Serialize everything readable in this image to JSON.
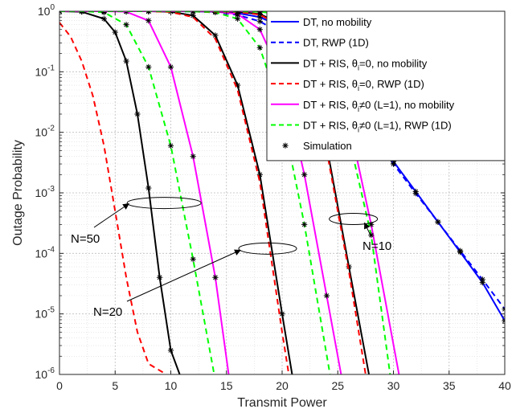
{
  "chart_data": {
    "type": "line",
    "title": "",
    "xlabel": "Transmit Power",
    "ylabel": "Outage Probability",
    "xlim": [
      0,
      40
    ],
    "ylim": [
      1e-06,
      1
    ],
    "yscale": "log",
    "grid": true,
    "minor_grid": true,
    "legend_position": "top-right",
    "x_ticks": [
      "0",
      "5",
      "10",
      "15",
      "20",
      "25",
      "30",
      "35",
      "40"
    ],
    "y_ticks": [
      {
        "base": "10",
        "exp": "0",
        "value": 1
      },
      {
        "base": "10",
        "exp": "-1",
        "value": 0.1
      },
      {
        "base": "10",
        "exp": "-2",
        "value": 0.01
      },
      {
        "base": "10",
        "exp": "-3",
        "value": 0.001
      },
      {
        "base": "10",
        "exp": "-4",
        "value": 0.0001
      },
      {
        "base": "10",
        "exp": "-5",
        "value": 1e-05
      },
      {
        "base": "10",
        "exp": "-6",
        "value": 1e-06
      }
    ],
    "legend": [
      {
        "pre": "DT, no mobility",
        "sub": "",
        "post": "",
        "color": "#0000ff",
        "dash": "solid",
        "marker": false
      },
      {
        "pre": "DT, RWP (1D)",
        "sub": "",
        "post": "",
        "color": "#0000ff",
        "dash": "dashed",
        "marker": false
      },
      {
        "pre": "DT + RIS, θ",
        "sub": "i",
        "post": "=0, no mobility",
        "color": "#000000",
        "dash": "solid",
        "marker": false
      },
      {
        "pre": "DT + RIS, θ",
        "sub": "i",
        "post": "=0, RWP (1D)",
        "color": "#ff0000",
        "dash": "dashed",
        "marker": false
      },
      {
        "pre": "DT + RIS, θ",
        "sub": "i",
        "post": "≠0 (L=1), no mobility",
        "color": "#ff00ff",
        "dash": "solid",
        "marker": false
      },
      {
        "pre": "DT + RIS, θ",
        "sub": "i",
        "post": "≠0 (L=1), RWP (1D)",
        "color": "#00ff00",
        "dash": "dashed",
        "marker": false
      },
      {
        "pre": "Simulation",
        "sub": "",
        "post": "",
        "color": "#000000",
        "dash": "none",
        "marker": true
      }
    ],
    "annotations": [
      {
        "label": "N=50",
        "ellipse_center": [
          9.4,
          0.00068
        ]
      },
      {
        "label": "N=20",
        "ellipse_center": [
          18.7,
          0.00012
        ]
      },
      {
        "label": "N=10",
        "ellipse_center": [
          26.4,
          0.00037
        ]
      }
    ],
    "series": [
      {
        "style_ref": 0,
        "color": "#0000ff",
        "dash": "solid",
        "sim": true,
        "x": [
          0,
          2,
          4,
          6,
          8,
          10,
          12,
          14,
          16,
          18,
          20,
          22,
          24,
          26,
          28,
          30,
          32,
          34,
          36,
          38,
          40
        ],
        "y": [
          1,
          1,
          1,
          1,
          1,
          0.999,
          0.995,
          0.98,
          0.93,
          0.8,
          0.55,
          0.28,
          0.1,
          0.033,
          0.0105,
          0.0033,
          0.00105,
          0.00033,
          0.000105,
          3.3e-05,
          7.7e-06
        ]
      },
      {
        "style_ref": 1,
        "color": "#0000ff",
        "dash": "dashed",
        "sim": true,
        "x": [
          0,
          2,
          4,
          6,
          8,
          10,
          12,
          14,
          16,
          18,
          20,
          22,
          24,
          26,
          28,
          30,
          32,
          34,
          36,
          38,
          40
        ],
        "y": [
          1,
          1,
          1,
          1,
          1,
          0.998,
          0.99,
          0.96,
          0.87,
          0.68,
          0.42,
          0.2,
          0.075,
          0.027,
          0.009,
          0.003,
          0.00098,
          0.00033,
          0.00011,
          3.7e-05,
          1.2e-05
        ]
      },
      {
        "style_ref": 2,
        "color": "#000000",
        "dash": "solid",
        "sim": true,
        "group": "N=50",
        "x": [
          0,
          2,
          4,
          5,
          6,
          7,
          8,
          9,
          10,
          10.8
        ],
        "y": [
          1,
          0.98,
          0.75,
          0.45,
          0.15,
          0.02,
          0.0012,
          4e-05,
          2.5e-06,
          1e-06
        ]
      },
      {
        "style_ref": 3,
        "color": "#ff0000",
        "dash": "dashed",
        "sim": false,
        "group": "N=50",
        "x": [
          0,
          1,
          2,
          3,
          4,
          5,
          6,
          7,
          8,
          9.6
        ],
        "y": [
          0.65,
          0.38,
          0.15,
          0.04,
          0.006,
          0.0005,
          4e-05,
          5e-06,
          1.5e-06,
          1e-06
        ]
      },
      {
        "style_ref": 4,
        "color": "#ff00ff",
        "dash": "solid",
        "sim": true,
        "group": "N=50",
        "x": [
          0,
          2,
          4,
          6,
          8,
          10,
          12,
          14,
          15.2
        ],
        "y": [
          1,
          1,
          1,
          0.98,
          0.7,
          0.12,
          0.004,
          4e-05,
          1e-06
        ]
      },
      {
        "style_ref": 5,
        "color": "#00ff00",
        "dash": "dashed",
        "sim": true,
        "group": "N=50",
        "x": [
          0,
          2,
          4,
          6,
          8,
          10,
          12,
          13.9
        ],
        "y": [
          1,
          1,
          0.96,
          0.6,
          0.12,
          0.006,
          8e-05,
          1e-06
        ]
      },
      {
        "style_ref": 2,
        "color": "#000000",
        "dash": "solid",
        "sim": true,
        "group": "N=20",
        "x": [
          0,
          4,
          8,
          10,
          12,
          14,
          16,
          18,
          20,
          20.9
        ],
        "y": [
          1,
          1,
          1,
          0.98,
          0.85,
          0.4,
          0.06,
          0.002,
          1e-05,
          1e-06
        ]
      },
      {
        "style_ref": 3,
        "color": "#ff0000",
        "dash": "dashed",
        "sim": false,
        "group": "N=20",
        "x": [
          0,
          4,
          8,
          10,
          12,
          14,
          16,
          18,
          20,
          20.6
        ],
        "y": [
          1,
          1,
          1,
          0.97,
          0.8,
          0.35,
          0.05,
          0.0015,
          5e-06,
          1e-06
        ]
      },
      {
        "style_ref": 4,
        "color": "#ff00ff",
        "dash": "solid",
        "sim": true,
        "group": "N=20",
        "x": [
          0,
          4,
          8,
          12,
          14,
          16,
          18,
          20,
          22,
          24,
          25.3
        ],
        "y": [
          1,
          1,
          1,
          1,
          0.99,
          0.9,
          0.5,
          0.08,
          0.002,
          2e-05,
          1e-06
        ]
      },
      {
        "style_ref": 5,
        "color": "#00ff00",
        "dash": "dashed",
        "sim": true,
        "group": "N=20",
        "x": [
          0,
          4,
          8,
          12,
          14,
          16,
          18,
          20,
          22,
          24.3
        ],
        "y": [
          1,
          1,
          1,
          0.99,
          0.96,
          0.75,
          0.25,
          0.02,
          0.0003,
          1e-06
        ]
      },
      {
        "style_ref": 2,
        "color": "#000000",
        "dash": "solid",
        "sim": true,
        "group": "N=10",
        "x": [
          0,
          8,
          12,
          16,
          18,
          20,
          22,
          24,
          26,
          27.8
        ],
        "y": [
          1,
          1,
          1,
          0.98,
          0.9,
          0.6,
          0.12,
          0.006,
          6e-05,
          1e-06
        ]
      },
      {
        "style_ref": 3,
        "color": "#ff0000",
        "dash": "dashed",
        "sim": false,
        "group": "N=10",
        "x": [
          0,
          8,
          12,
          16,
          18,
          20,
          22,
          24,
          26,
          27.5
        ],
        "y": [
          1,
          1,
          1,
          0.97,
          0.88,
          0.55,
          0.1,
          0.005,
          5e-05,
          1e-06
        ]
      },
      {
        "style_ref": 4,
        "color": "#ff00ff",
        "dash": "solid",
        "sim": true,
        "group": "N=10",
        "x": [
          0,
          8,
          12,
          16,
          18,
          20,
          22,
          24,
          26,
          28,
          30.5
        ],
        "y": [
          1,
          1,
          1,
          1,
          0.99,
          0.95,
          0.7,
          0.2,
          0.015,
          0.0003,
          1e-06
        ]
      },
      {
        "style_ref": 5,
        "color": "#00ff00",
        "dash": "dashed",
        "sim": true,
        "group": "N=10",
        "x": [
          0,
          8,
          12,
          16,
          18,
          20,
          22,
          24,
          26,
          28,
          29.7
        ],
        "y": [
          1,
          1,
          1,
          0.99,
          0.98,
          0.9,
          0.55,
          0.12,
          0.008,
          0.0002,
          1e-06
        ]
      }
    ]
  }
}
